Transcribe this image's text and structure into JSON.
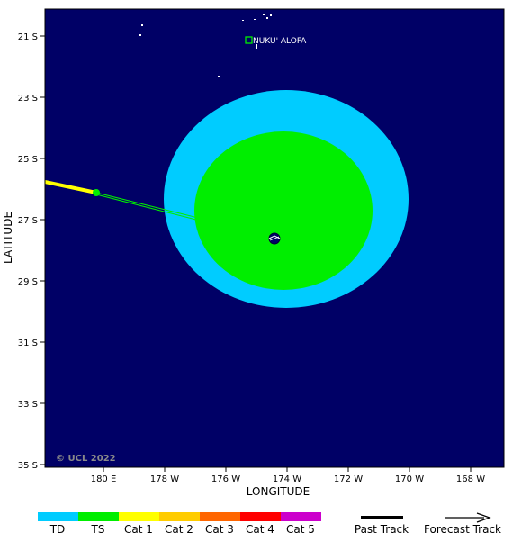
{
  "map": {
    "longitude_label": "LONGITUDE",
    "latitude_label": "LATITUDE",
    "copyright": "© UCL 2022",
    "ocean_color": "#000066",
    "x_ticks": [
      "180 E",
      "178 W",
      "176 W",
      "174 W",
      "172 W",
      "170 W",
      "168 W"
    ],
    "y_ticks": [
      "21 S",
      "23 S",
      "25 S",
      "27 S",
      "29 S",
      "31 S",
      "33 S",
      "35 S"
    ],
    "place": {
      "name": "NUKU' ALOFA"
    }
  },
  "storm": {
    "wind_field_colors": {
      "td_radius": "#00ccff",
      "ts_radius": "#00ee00"
    },
    "past_track_color": "#ffff00",
    "forecast_track_color": "#00ee00"
  },
  "legend": {
    "categories": [
      {
        "label": "TD",
        "color": "#00ccff"
      },
      {
        "label": "TS",
        "color": "#00ee00"
      },
      {
        "label": "Cat 1",
        "color": "#ffff00"
      },
      {
        "label": "Cat 2",
        "color": "#ffcc00"
      },
      {
        "label": "Cat 3",
        "color": "#ff6600"
      },
      {
        "label": "Cat 4",
        "color": "#ff0000"
      },
      {
        "label": "Cat 5",
        "color": "#cc00cc"
      }
    ],
    "past_track_label": "Past Track",
    "forecast_track_label": "Forecast Track"
  }
}
